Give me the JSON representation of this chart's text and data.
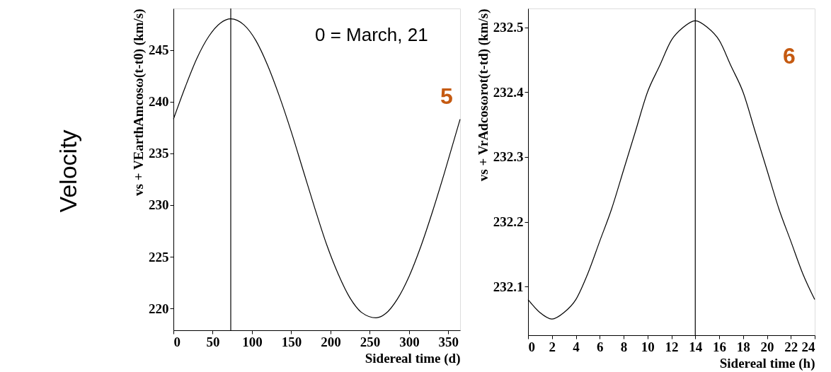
{
  "chart_data": [
    {
      "type": "line",
      "xlabel": "Sidereal time (d)",
      "ylabel": "vs + VEarthAmcosω(t-t0) (km/s)",
      "annotations": [
        "Velocity",
        "0 = March, 21",
        "5"
      ],
      "x": [
        0,
        15,
        30,
        45,
        60,
        73,
        90,
        105,
        120,
        135,
        150,
        165,
        180,
        195,
        210,
        225,
        240,
        258,
        270,
        285,
        300,
        315,
        330,
        345,
        365
      ],
      "series": [
        {
          "color": "#000000",
          "values": [
            238.3,
            241.4,
            244.2,
            246.3,
            247.6,
            248.0,
            247.4,
            245.9,
            243.5,
            240.5,
            237.1,
            233.4,
            229.7,
            226.2,
            223.3,
            221.0,
            219.6,
            219.1,
            219.5,
            220.9,
            223.1,
            226.0,
            229.4,
            233.1,
            238.3
          ]
        }
      ],
      "xlim": [
        0,
        365
      ],
      "xticks": [
        0,
        50,
        100,
        150,
        200,
        250,
        300,
        350
      ],
      "ylim": [
        217.9,
        249.0
      ],
      "yticks": [
        220,
        225,
        230,
        235,
        240,
        245
      ],
      "ref_lines": [
        {
          "axis": "x",
          "value": 73,
          "color": "#000000"
        }
      ],
      "grid": false,
      "line_style": "solid"
    },
    {
      "type": "line",
      "xlabel": "Sidereal time (h)",
      "ylabel": "vs + VrAdcosωrot(t-td) (km/s)",
      "annotations": [
        "6"
      ],
      "x": [
        0,
        1,
        2,
        3,
        4,
        5,
        6,
        7,
        8,
        9,
        10,
        11,
        12,
        13,
        14,
        15,
        16,
        17,
        18,
        19,
        20,
        21,
        22,
        23,
        24
      ],
      "series": [
        {
          "color": "#000000",
          "values": [
            232.08,
            232.06,
            232.05,
            232.06,
            232.08,
            232.12,
            232.17,
            232.22,
            232.28,
            232.34,
            232.4,
            232.44,
            232.48,
            232.5,
            232.51,
            232.5,
            232.48,
            232.44,
            232.4,
            232.34,
            232.28,
            232.22,
            232.17,
            232.12,
            232.08
          ]
        }
      ],
      "xlim": [
        0,
        24
      ],
      "xticks": [
        0,
        2,
        4,
        6,
        8,
        10,
        12,
        14,
        16,
        18,
        20,
        22,
        24
      ],
      "ylim": [
        232.025,
        232.529
      ],
      "yticks": [
        232.1,
        232.2,
        232.3,
        232.4,
        232.5
      ],
      "ref_lines": [
        {
          "axis": "x",
          "value": 14,
          "color": "#000000"
        }
      ],
      "grid": false,
      "line_style": "solid"
    }
  ]
}
